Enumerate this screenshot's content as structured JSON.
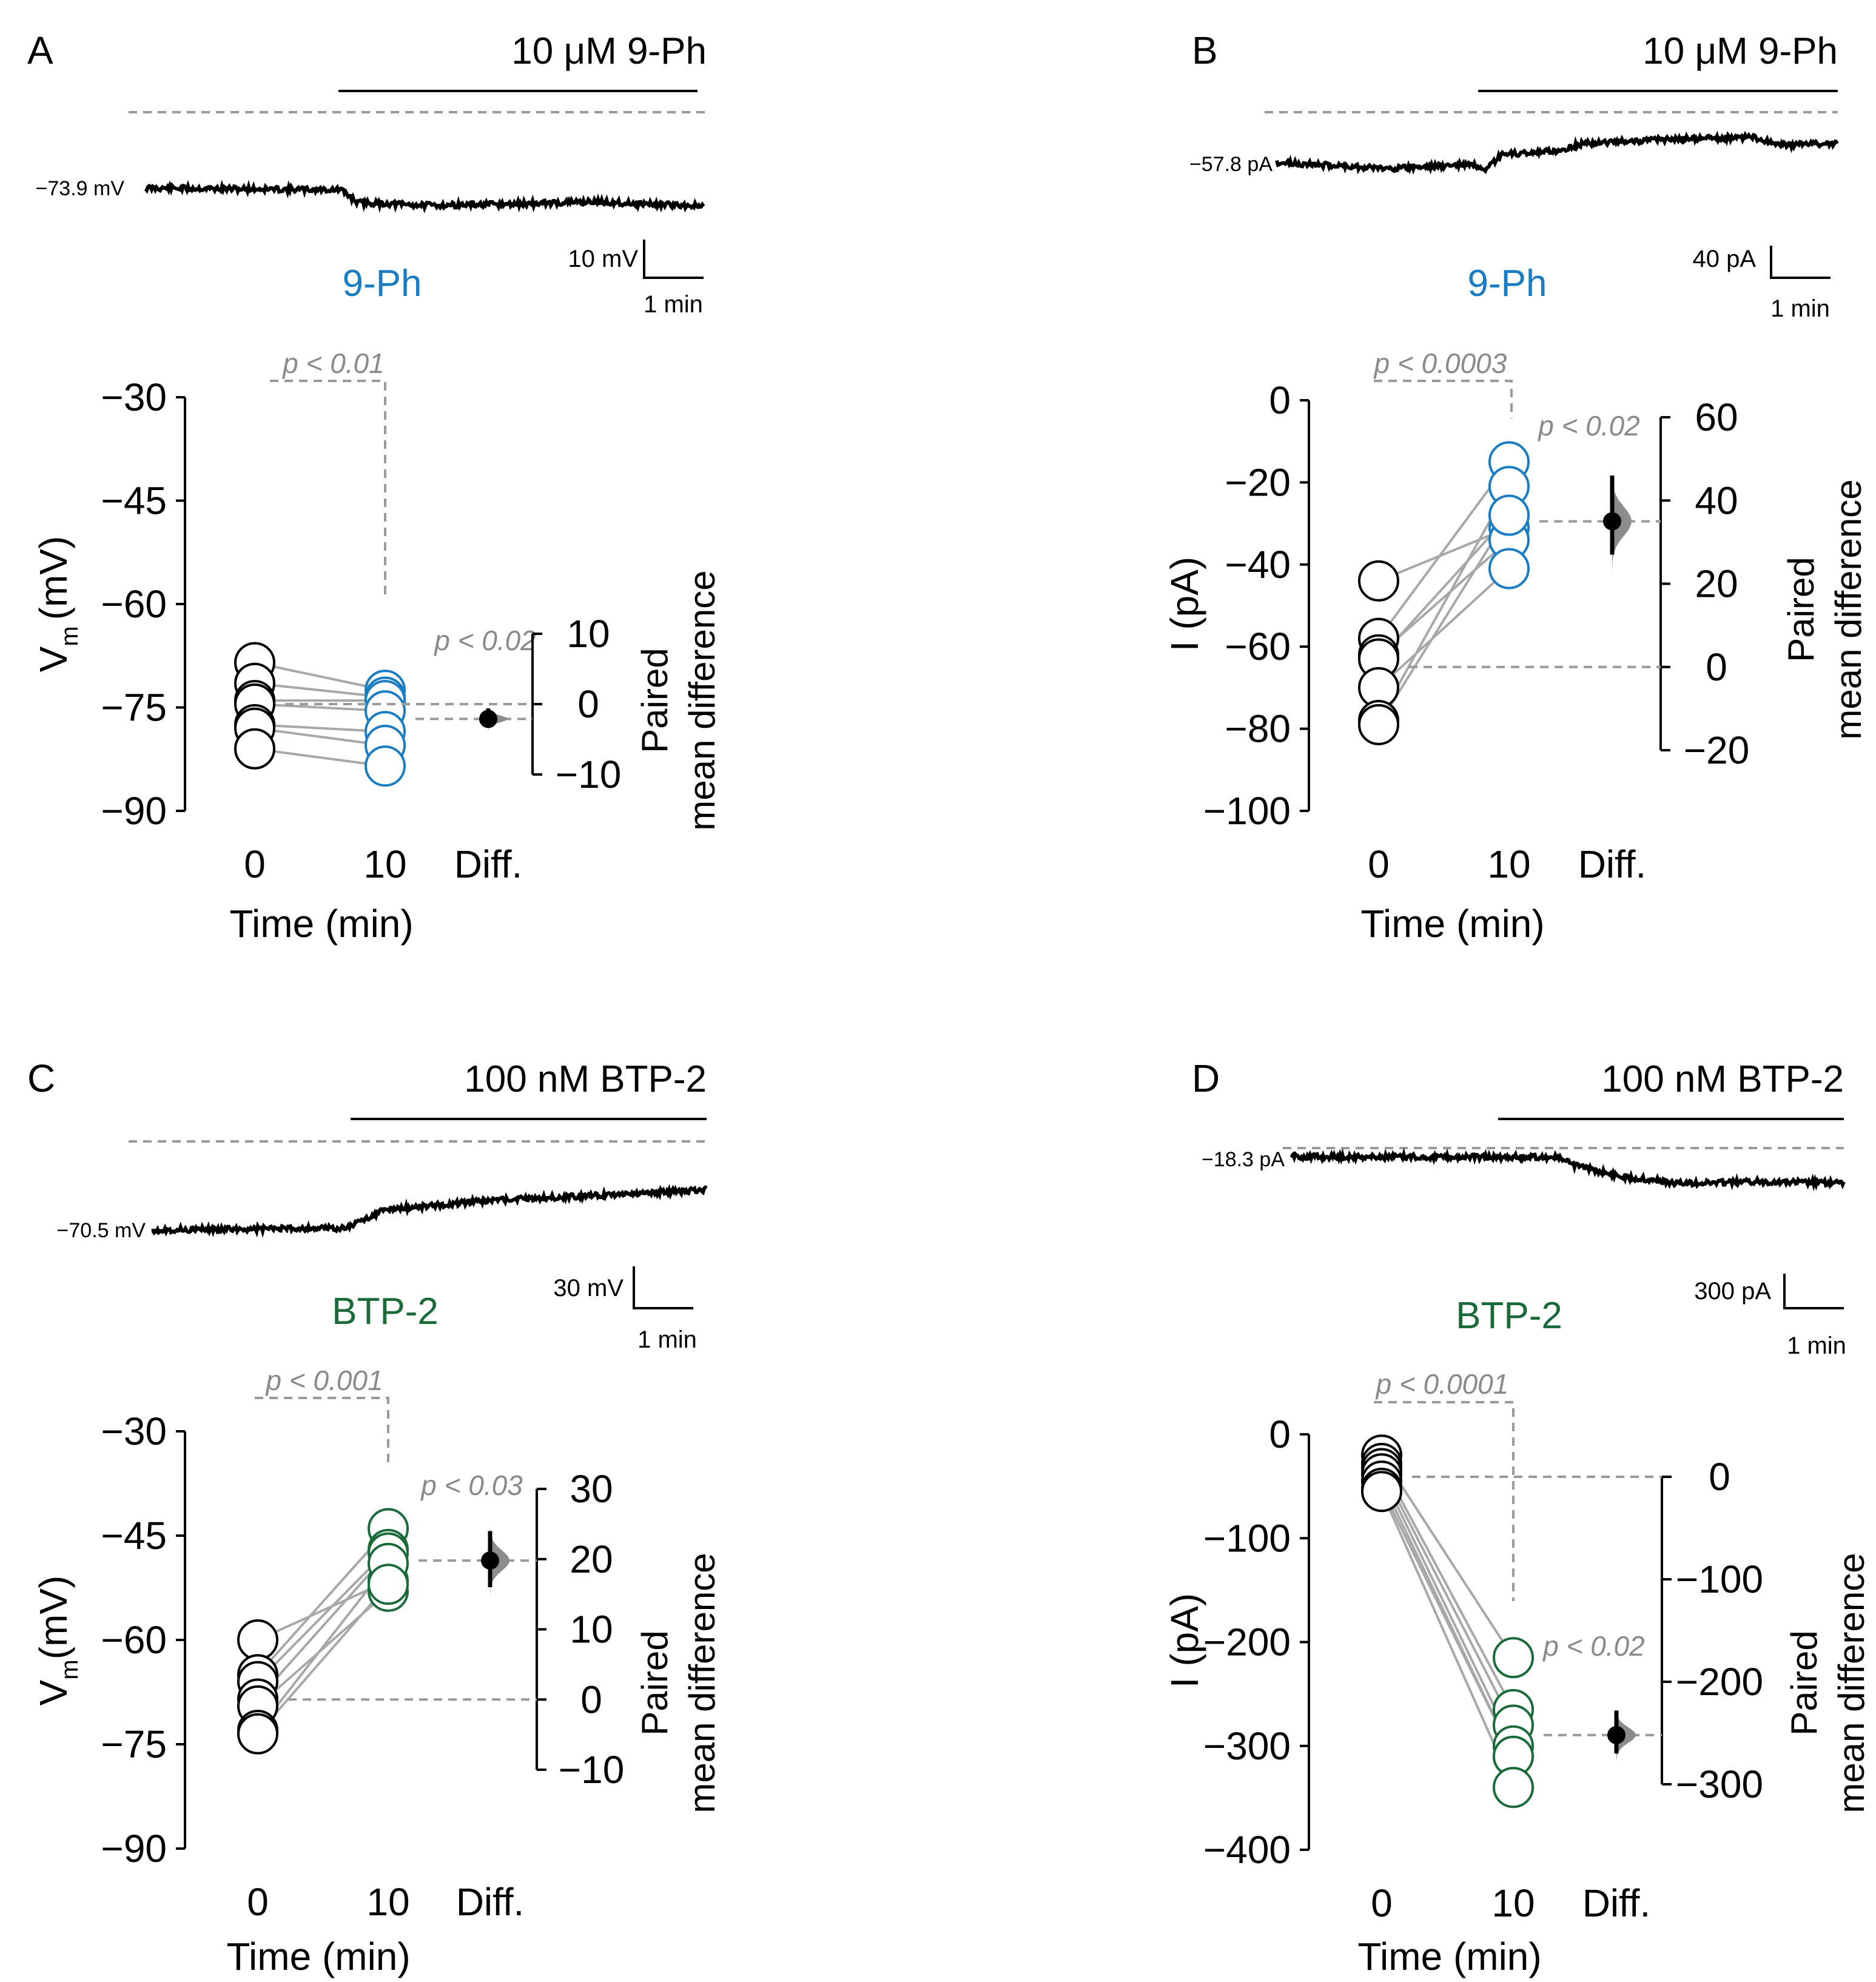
{
  "colors": {
    "control": "#000000",
    "ph": "#1a7cc2",
    "btp": "#1a6b39",
    "line": "#a8a8a8",
    "ref": "#9a9a9a",
    "pval": "#8a8a8a",
    "dist": "#8c8c8c"
  },
  "chart_data": [
    {
      "type": "scatter",
      "panel": "A",
      "drug_label": "10 μM 9-Ph",
      "trace": {
        "baseline_label": "−73.9 mV",
        "scale_y_label": "10 mV",
        "scale_x_label": "1 min",
        "shape": [
          [
            0,
            0
          ],
          [
            0.35,
            0.2
          ],
          [
            0.38,
            1.6
          ],
          [
            0.5,
            1.9
          ],
          [
            0.65,
            1.8
          ],
          [
            0.8,
            1.5
          ],
          [
            1,
            2.0
          ]
        ]
      },
      "title": "9-Ph",
      "title_color": "#1a7cc2",
      "ylabel": "V",
      "ylabel_sub": "m",
      "ylabel_unit": "(mV)",
      "ylim": [
        -90,
        -30
      ],
      "yticks": [
        "−30",
        "−45",
        "−60",
        "−75",
        "−90"
      ],
      "xlabel": "Time (min)",
      "categories": [
        "0",
        "10",
        "Diff."
      ],
      "pairs": [
        [
          -68.5,
          -72.5
        ],
        [
          -71.5,
          -73.5
        ],
        [
          -74.0,
          -74.0
        ],
        [
          -74.5,
          -75.5
        ],
        [
          -77.5,
          -78.5
        ],
        [
          -78.0,
          -80.5
        ],
        [
          -81.0,
          -83.5
        ]
      ],
      "p_main": "p < 0.01",
      "p_diff": "p < 0.02",
      "diff_label": "Paired mean difference",
      "diff_label_lines": [
        "Paired",
        "mean difference"
      ],
      "diff_ylim": [
        -10,
        10
      ],
      "diff_yticks": [
        "10",
        "0",
        "−10"
      ],
      "diff_mean": -2.1,
      "diff_ci": [
        -3.3,
        -0.6
      ]
    },
    {
      "type": "scatter",
      "panel": "B",
      "drug_label": "10 μM 9-Ph",
      "trace": {
        "baseline_label": "−57.8 pA",
        "scale_y_label": "40 pA",
        "scale_x_label": "1 min",
        "shape": [
          [
            0,
            0
          ],
          [
            0.2,
            -0.3
          ],
          [
            0.35,
            -0.1
          ],
          [
            0.37,
            -0.5
          ],
          [
            0.4,
            0.4
          ],
          [
            0.5,
            0.6
          ],
          [
            0.55,
            1.0
          ],
          [
            0.7,
            1.2
          ],
          [
            0.85,
            1.3
          ],
          [
            0.9,
            0.9
          ],
          [
            1,
            1.0
          ]
        ]
      },
      "title": "9-Ph",
      "title_color": "#1a7cc2",
      "ylabel": "I (pA)",
      "ylim": [
        -100,
        0
      ],
      "yticks": [
        "0",
        "−20",
        "−40",
        "−60",
        "−80",
        "−100"
      ],
      "xlabel": "Time (min)",
      "categories": [
        "0",
        "10",
        "Diff."
      ],
      "pairs": [
        [
          -44,
          -31
        ],
        [
          -58,
          -15
        ],
        [
          -62,
          -34
        ],
        [
          -63,
          -28
        ],
        [
          -70,
          -41
        ],
        [
          -78,
          -21
        ],
        [
          -79,
          -28
        ]
      ],
      "p_main": "p < 0.0003",
      "p_diff": "p < 0.02",
      "diff_label": "Paired mean difference",
      "diff_label_lines": [
        "Paired",
        "mean difference"
      ],
      "diff_ylim": [
        -20,
        60
      ],
      "diff_yticks": [
        "60",
        "40",
        "20",
        "0",
        "−20"
      ],
      "diff_mean": 35.0,
      "diff_ci": [
        27.0,
        46.0
      ]
    },
    {
      "type": "scatter",
      "panel": "C",
      "drug_label": "100 nM BTP-2",
      "trace": {
        "baseline_label": "−70.5 mV",
        "scale_y_label": "30 mV",
        "scale_x_label": "1 min",
        "shape": [
          [
            0,
            0
          ],
          [
            0.35,
            0.05
          ],
          [
            0.42,
            0.55
          ],
          [
            0.6,
            0.8
          ],
          [
            0.8,
            0.95
          ],
          [
            1,
            1.1
          ]
        ]
      },
      "title": "BTP-2",
      "title_color": "#1a6b39",
      "ylabel": "V",
      "ylabel_sub": "m",
      "ylabel_unit": "(mV)",
      "ylim": [
        -90,
        -30
      ],
      "yticks": [
        "−30",
        "−45",
        "−60",
        "−75",
        "−90"
      ],
      "xlabel": "Time (min)",
      "categories": [
        "0",
        "10",
        "Diff."
      ],
      "pairs": [
        [
          -60,
          -51.5
        ],
        [
          -65,
          -44
        ],
        [
          -66,
          -47
        ],
        [
          -68.5,
          -47.5
        ],
        [
          -69.5,
          -53
        ],
        [
          -73,
          -49
        ],
        [
          -73.5,
          -52
        ]
      ],
      "p_main": "p < 0.001",
      "p_diff": "p < 0.03",
      "diff_label": "Paired mean difference",
      "diff_label_lines": [
        "Paired",
        "mean difference"
      ],
      "diff_ylim": [
        -10,
        30
      ],
      "diff_yticks": [
        "30",
        "20",
        "10",
        "0",
        "−10"
      ],
      "diff_mean": 19.8,
      "diff_ci": [
        16.0,
        24.0
      ]
    },
    {
      "type": "scatter",
      "panel": "D",
      "drug_label": "100 nM BTP-2",
      "trace": {
        "baseline_label": "−18.3 pA",
        "scale_y_label": "300 pA",
        "scale_x_label": "1 min",
        "shape": [
          [
            0,
            0
          ],
          [
            0.48,
            -0.02
          ],
          [
            0.52,
            -0.3
          ],
          [
            0.6,
            -0.6
          ],
          [
            0.7,
            -0.8
          ],
          [
            0.85,
            -0.75
          ],
          [
            1,
            -0.8
          ]
        ]
      },
      "title": "BTP-2",
      "title_color": "#1a6b39",
      "ylabel": "I (pA)",
      "ylim": [
        -400,
        0
      ],
      "yticks": [
        "0",
        "−100",
        "−200",
        "−300",
        "−400"
      ],
      "xlabel": "Time (min)",
      "categories": [
        "0",
        "10",
        "Diff."
      ],
      "pairs": [
        [
          -20,
          -215
        ],
        [
          -28,
          -265
        ],
        [
          -33,
          -280
        ],
        [
          -38,
          -300
        ],
        [
          -45,
          -310
        ],
        [
          -52,
          -310
        ],
        [
          -55,
          -340
        ]
      ],
      "p_main": "p < 0.0001",
      "p_diff": "p < 0.02",
      "diff_label": "Paired mean difference",
      "diff_label_lines": [
        "Paired",
        "mean difference"
      ],
      "diff_ylim": [
        -300,
        0
      ],
      "diff_yticks": [
        "0",
        "−100",
        "−200",
        "−300"
      ],
      "diff_mean": -252,
      "diff_ci": [
        -270,
        -228
      ]
    }
  ]
}
